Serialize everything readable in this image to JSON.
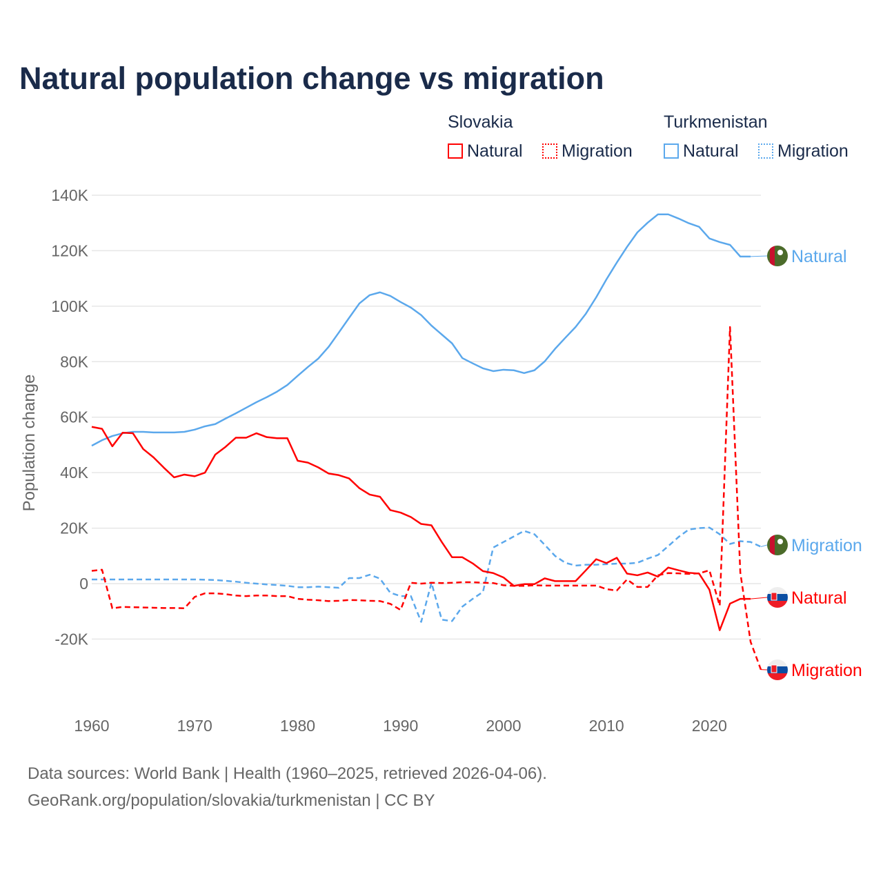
{
  "title": "Natural population change vs migration",
  "legend": {
    "groups": [
      {
        "country": "Slovakia",
        "natural": "Natural",
        "migration": "Migration",
        "color": "#ff0000"
      },
      {
        "country": "Turkmenistan",
        "natural": "Natural",
        "migration": "Migration",
        "color": "#5ba8ec"
      }
    ]
  },
  "footer": {
    "line1": "Data sources: World Bank | Health (1960–2025, retrieved 2026-04-06).",
    "line2": "GeoRank.org/population/slovakia/turkmenistan | CC BY"
  },
  "chart_data": {
    "type": "line",
    "title": "Natural population change vs migration",
    "xlabel": "",
    "ylabel": "Population change",
    "xlim": [
      1960,
      2025
    ],
    "ylim": [
      -20000,
      140000
    ],
    "x_ticks": [
      "1960",
      "1970",
      "1980",
      "1990",
      "2000",
      "2010",
      "2020"
    ],
    "y_ticks": [
      {
        "v": -20000,
        "label": "-20K"
      },
      {
        "v": 0,
        "label": "0"
      },
      {
        "v": 20000,
        "label": "20K"
      },
      {
        "v": 40000,
        "label": "40K"
      },
      {
        "v": 60000,
        "label": "60K"
      },
      {
        "v": 80000,
        "label": "80K"
      },
      {
        "v": 100000,
        "label": "100K"
      },
      {
        "v": 120000,
        "label": "120K"
      },
      {
        "v": 140000,
        "label": "140K"
      }
    ],
    "grid": true,
    "start_year": 1960,
    "series": [
      {
        "name": "Turkmenistan Natural",
        "label": "Natural",
        "color": "#5ba8ec",
        "dashed": false,
        "flag": "turkmenistan",
        "values_k": [
          49.7,
          51.7,
          53.2,
          54.2,
          54.7,
          54.7,
          54.5,
          54.5,
          54.5,
          54.7,
          55.5,
          56.7,
          57.5,
          59.5,
          61.4,
          63.4,
          65.4,
          67.2,
          69.2,
          71.6,
          74.9,
          78.1,
          81.1,
          85.3,
          90.5,
          95.8,
          101,
          104,
          105,
          103.7,
          101.5,
          99.5,
          96.8,
          93,
          89.8,
          86.6,
          81.3,
          79.4,
          77.6,
          76.6,
          77.1,
          76.9,
          75.9,
          76.9,
          80.1,
          84.6,
          88.6,
          92.5,
          97.3,
          103.2,
          109.7,
          115.7,
          121.4,
          126.6,
          130.1,
          133.1,
          133.1,
          131.6,
          129.9,
          128.6,
          124.4,
          123.1,
          122.1,
          117.9,
          117.9
        ]
      },
      {
        "name": "Turkmenistan Migration",
        "label": "Migration",
        "color": "#5ba8ec",
        "dashed": true,
        "flag": "turkmenistan",
        "values_k": [
          1.5,
          1.5,
          1.5,
          1.5,
          1.5,
          1.5,
          1.5,
          1.5,
          1.5,
          1.5,
          1.5,
          1.4,
          1.3,
          1,
          0.7,
          0.3,
          0,
          -0.3,
          -0.5,
          -0.8,
          -1.3,
          -1.3,
          -1.1,
          -1.3,
          -1.5,
          2,
          2,
          3.2,
          1.8,
          -3.3,
          -4.5,
          -4.5,
          -13.8,
          0.3,
          -13,
          -13.5,
          -8.3,
          -5.5,
          -3,
          13,
          15,
          17,
          19,
          17.8,
          14,
          10,
          7.5,
          6.5,
          6.8,
          6.8,
          7,
          7.2,
          7.2,
          7.5,
          9,
          10.3,
          13.5,
          16.8,
          19.5,
          20,
          20.2,
          17.8,
          14.3,
          15.3,
          15,
          13.3
        ]
      },
      {
        "name": "Slovakia Natural",
        "label": "Natural",
        "color": "#ff0000",
        "dashed": false,
        "flag": "slovakia",
        "values_k": [
          56.5,
          55.8,
          49.5,
          54.4,
          54.2,
          48.5,
          45.5,
          41.8,
          38.3,
          39.3,
          38.7,
          40,
          46.5,
          49.3,
          52.6,
          52.6,
          54.2,
          52.8,
          52.4,
          52.4,
          44.3,
          43.6,
          41.9,
          39.7,
          39.1,
          37.9,
          34.4,
          32.1,
          31.3,
          26.5,
          25.6,
          24,
          21.5,
          21,
          15,
          9.5,
          9.5,
          7.3,
          4.5,
          3.8,
          2.2,
          -0.8,
          -0.2,
          -0.2,
          1.9,
          0.9,
          0.9,
          0.9,
          4.8,
          8.8,
          7.4,
          9.3,
          3.6,
          3,
          4,
          2.5,
          5.8,
          4.8,
          3.9,
          3.6,
          -2.2,
          -16.8,
          -7.2,
          -5.5,
          -5.5
        ]
      },
      {
        "name": "Slovakia Migration",
        "label": "Migration",
        "color": "#ff0000",
        "dashed": true,
        "flag": "slovakia",
        "values_k": [
          4.6,
          5,
          -8.9,
          -8.4,
          -8.5,
          -8.6,
          -8.7,
          -8.8,
          -8.8,
          -8.9,
          -4.8,
          -3.5,
          -3.5,
          -3.8,
          -4.3,
          -4.5,
          -4.3,
          -4.3,
          -4.5,
          -4.5,
          -5.5,
          -5.8,
          -6,
          -6.3,
          -6.2,
          -5.9,
          -6,
          -6.2,
          -6.3,
          -7.3,
          -9.5,
          0.3,
          0,
          0.3,
          0.2,
          0.3,
          0.5,
          0.5,
          0.3,
          0.2,
          -0.6,
          -0.8,
          -0.8,
          -0.6,
          -0.7,
          -0.7,
          -0.7,
          -0.7,
          -0.7,
          -0.7,
          -2,
          -2.5,
          1.5,
          -1.2,
          -1.2,
          3,
          3.8,
          3.7,
          3.5,
          3.7,
          4.8,
          -8,
          92.5,
          4,
          -21,
          -31
        ]
      }
    ]
  }
}
